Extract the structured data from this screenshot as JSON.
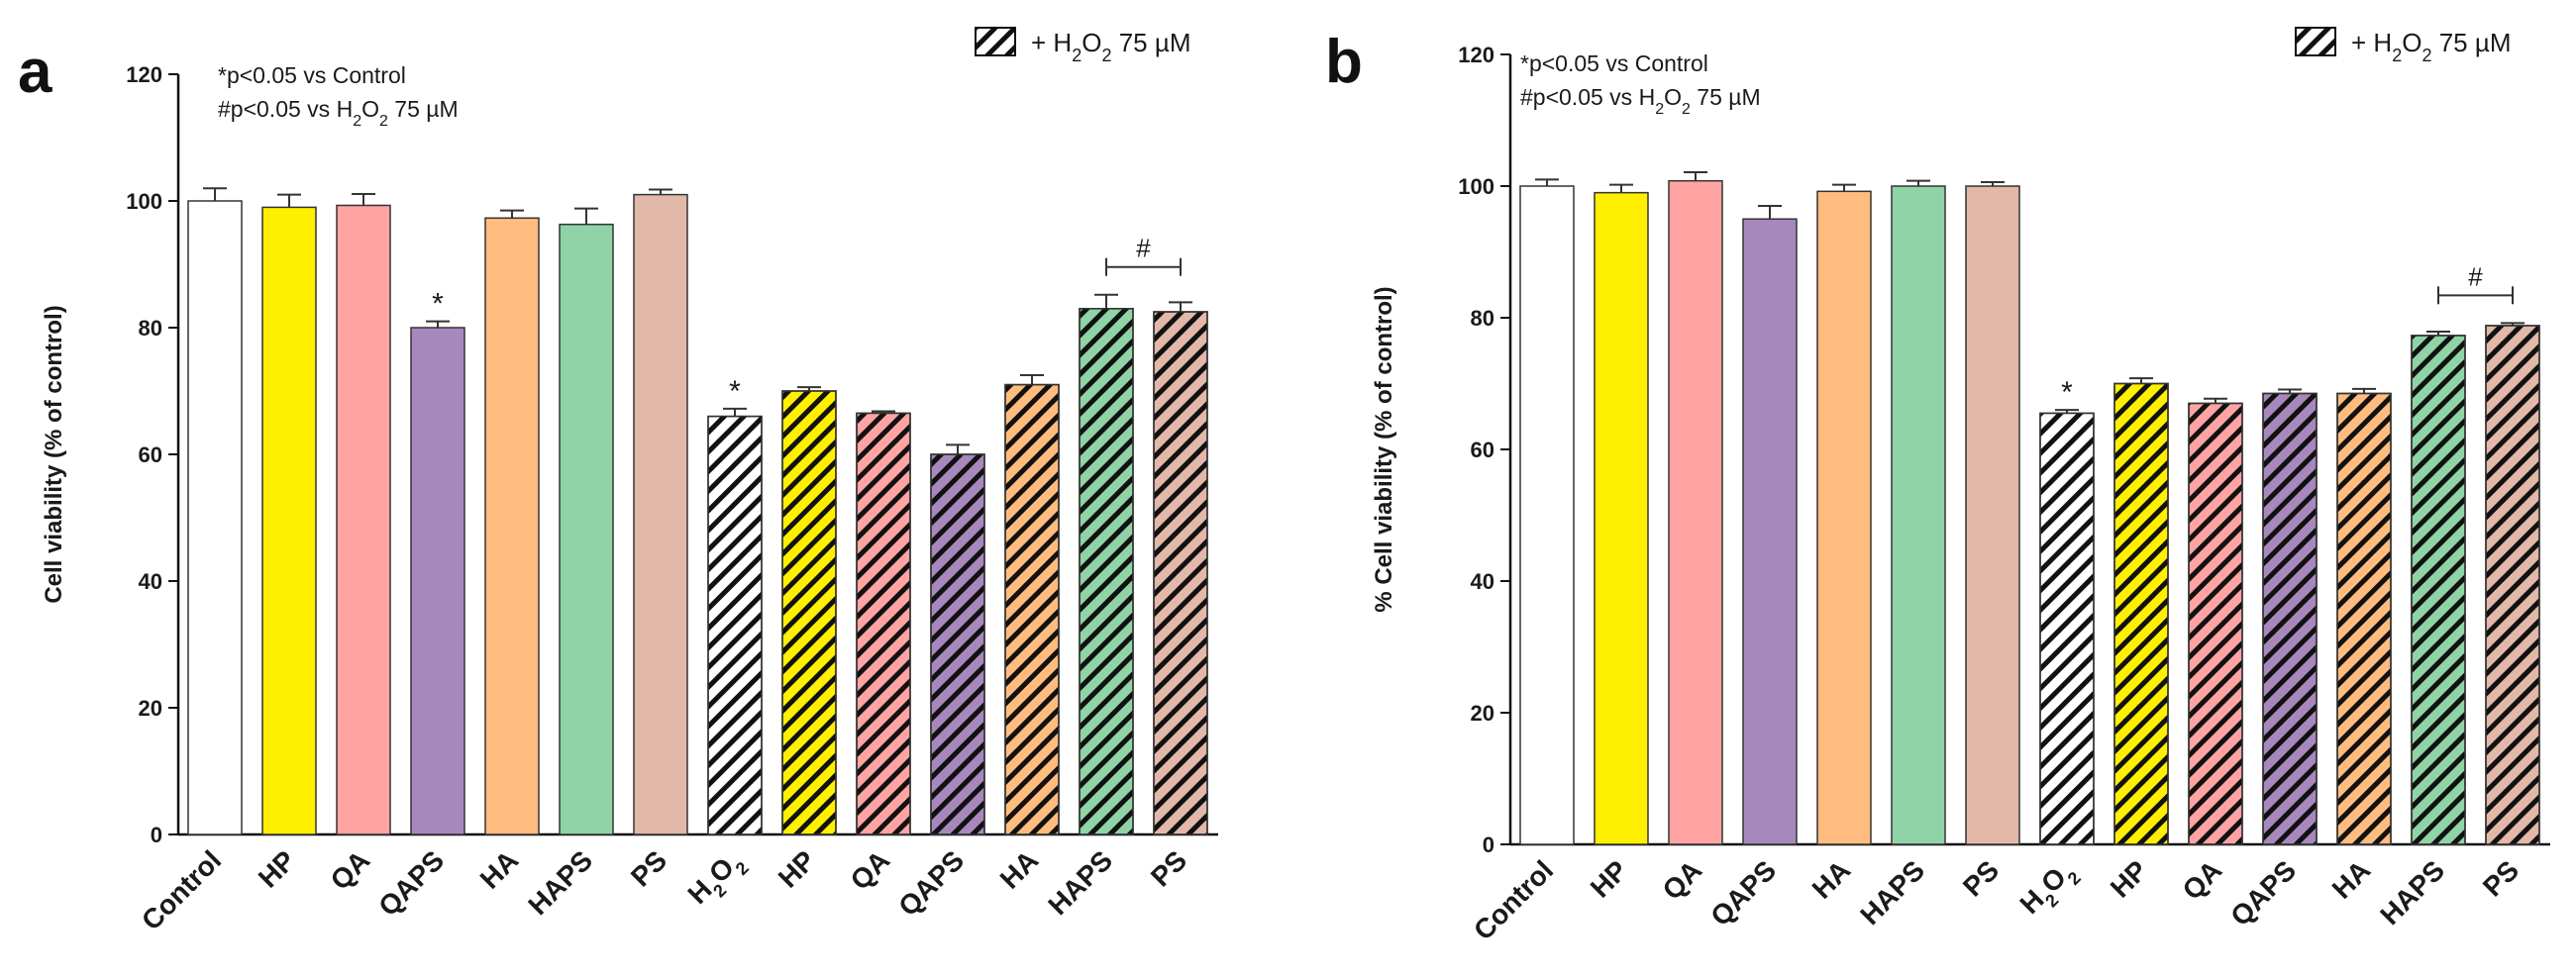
{
  "chart_data": [
    {
      "type": "bar",
      "panel_label": "a",
      "ylabel": "Cell viability (% of control)",
      "ylim": [
        0,
        120
      ],
      "yticks": [
        "0",
        "20",
        "40",
        "60",
        "80",
        "100",
        "120"
      ],
      "notes": [
        "*p<0.05 vs Control",
        "#p<0.05 vs H2O2 75 µM"
      ],
      "legend": {
        "label": "+ H2O2 75 µM",
        "pattern": "hatched",
        "placement": "top-right"
      },
      "categories": [
        "Control",
        "HP",
        "QA",
        "QAPS",
        "HA",
        "HAPS",
        "PS",
        "H2O2",
        "HP",
        "QA",
        "QAPS",
        "HA",
        "HAPS",
        "PS"
      ],
      "values": [
        100,
        99,
        99.3,
        80,
        97.3,
        96.3,
        101,
        66,
        70,
        66.5,
        60,
        71,
        83,
        82.5
      ],
      "errors": [
        2,
        2,
        1.8,
        1,
        1.2,
        2.5,
        0.8,
        1.2,
        0.6,
        0.3,
        1.5,
        1.5,
        2.2,
        1.5
      ],
      "colors": [
        "#ffffff",
        "#ffef00",
        "#ffa3a3",
        "#a788bd",
        "#ffbc7e",
        "#8fd3a6",
        "#e2b8a8",
        "#ffffff",
        "#ffef00",
        "#ffa3a3",
        "#a788bd",
        "#ffbc7e",
        "#8fd3a6",
        "#e2b8a8"
      ],
      "hatched": [
        false,
        false,
        false,
        false,
        false,
        false,
        false,
        true,
        true,
        true,
        true,
        true,
        true,
        true
      ],
      "star_marks": [
        3,
        7
      ],
      "hash_bracket": {
        "from": 12,
        "to": 13,
        "label": "#"
      }
    },
    {
      "type": "bar",
      "panel_label": "b",
      "ylabel": "% Cell viability (% of control)",
      "ylim": [
        0,
        120
      ],
      "yticks": [
        "0",
        "20",
        "40",
        "60",
        "80",
        "100",
        "120"
      ],
      "notes": [
        "*p<0.05 vs Control",
        "#p<0.05 vs H2O2 75 µM"
      ],
      "legend": {
        "label": "+ H2O2 75 µM",
        "pattern": "hatched",
        "placement": "top-right"
      },
      "categories": [
        "Control",
        "HP",
        "QA",
        "QAPS",
        "HA",
        "HAPS",
        "PS",
        "H2O2",
        "HP",
        "QA",
        "QAPS",
        "HA",
        "HAPS",
        "PS"
      ],
      "values": [
        100,
        99,
        100.8,
        95,
        99.2,
        100,
        100,
        65.5,
        70,
        67,
        68.5,
        68.5,
        77.3,
        78.8
      ],
      "errors": [
        1,
        1.2,
        1.3,
        2,
        1,
        0.8,
        0.6,
        0.5,
        0.8,
        0.7,
        0.6,
        0.7,
        0.6,
        0.4
      ],
      "colors": [
        "#ffffff",
        "#ffef00",
        "#ffa3a3",
        "#a788bd",
        "#ffbc7e",
        "#8fd3a6",
        "#e2b8a8",
        "#ffffff",
        "#ffef00",
        "#ffa3a3",
        "#a788bd",
        "#ffbc7e",
        "#8fd3a6",
        "#e2b8a8"
      ],
      "hatched": [
        false,
        false,
        false,
        false,
        false,
        false,
        false,
        true,
        true,
        true,
        true,
        true,
        true,
        true
      ],
      "star_marks": [
        7
      ],
      "hash_bracket": {
        "from": 12,
        "to": 13,
        "label": "#"
      }
    }
  ]
}
